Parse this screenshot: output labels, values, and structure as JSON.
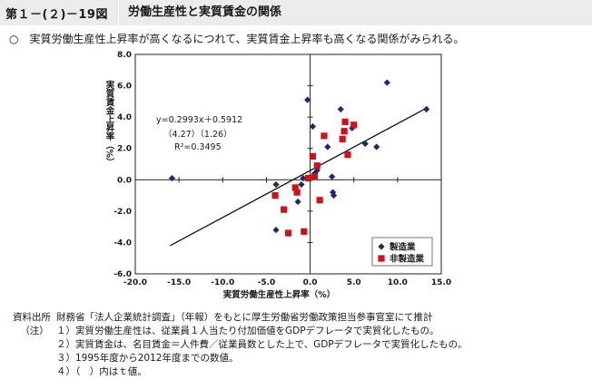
{
  "header": {
    "figure_number": "第１－(２)－19図",
    "title": "労働生産性と実質賃金の関係"
  },
  "summary": {
    "bullet": "○",
    "text": "実質労働生産性上昇率が高くなるにつれて、実質賃金上昇率も高くなる関係がみられる。"
  },
  "chart_data": {
    "type": "scatter",
    "xlabel": "実質労働生産性上昇率（%）",
    "ylabel": "実質賃金上昇率（%）",
    "xlim": [
      -20.0,
      15.0
    ],
    "ylim": [
      -6.0,
      8.0
    ],
    "x_ticks": [
      "-20.0",
      "-15.0",
      "-10.0",
      "-5.0",
      "0.0",
      "5.0",
      "10.0",
      "15.0"
    ],
    "y_ticks": [
      "8.0",
      "6.0",
      "4.0",
      "2.0",
      "0.0",
      "-2.0",
      "-4.0",
      "-6.0"
    ],
    "grid": false,
    "legend_position": "bottom-right",
    "annotation": {
      "equation": "y=0.2993x＋0.5912",
      "t_values": "（4.27）（1.26）",
      "r2": "R²=0.3495"
    },
    "regression": {
      "slope": 0.2993,
      "intercept": 0.5912,
      "x_range": [
        -16.0,
        13.5
      ]
    },
    "series": [
      {
        "name": "製造業",
        "marker": "diamond",
        "color": "#1f2a6b",
        "points": [
          [
            -15.8,
            0.1
          ],
          [
            -3.9,
            -0.3
          ],
          [
            -3.9,
            -3.2
          ],
          [
            -1.4,
            -1.4
          ],
          [
            -1.0,
            -0.3
          ],
          [
            -0.8,
            0.1
          ],
          [
            -0.3,
            5.1
          ],
          [
            0.3,
            3.4
          ],
          [
            0.5,
            0.4
          ],
          [
            0.8,
            0.6
          ],
          [
            2.0,
            2.1
          ],
          [
            2.5,
            0.2
          ],
          [
            2.6,
            -0.8
          ],
          [
            2.7,
            -1.0
          ],
          [
            3.5,
            4.5
          ],
          [
            4.8,
            3.3
          ],
          [
            6.3,
            2.3
          ],
          [
            7.6,
            2.1
          ],
          [
            8.8,
            6.2
          ],
          [
            13.3,
            4.5
          ]
        ]
      },
      {
        "name": "非製造業",
        "marker": "square",
        "color": "#d0101c",
        "points": [
          [
            -4.0,
            -1.0
          ],
          [
            -3.0,
            -1.9
          ],
          [
            -2.5,
            -3.4
          ],
          [
            -1.7,
            -0.5
          ],
          [
            -1.5,
            -0.8
          ],
          [
            -0.7,
            -3.3
          ],
          [
            -0.2,
            0.1
          ],
          [
            0.3,
            1.5
          ],
          [
            0.5,
            0.2
          ],
          [
            0.8,
            0.9
          ],
          [
            1.1,
            -1.3
          ],
          [
            1.6,
            2.8
          ],
          [
            3.7,
            2.6
          ],
          [
            3.9,
            3.1
          ],
          [
            4.0,
            3.7
          ],
          [
            4.3,
            1.6
          ],
          [
            5.0,
            3.5
          ]
        ]
      }
    ]
  },
  "notes": [
    {
      "label": "資料出所",
      "text": "財務省「法人企業統計調査」（年報）をもとに厚生労働省労働政策担当参事官室にて推計"
    },
    {
      "label": "（注）",
      "text": "１）実質労働生産性は、従業員１人当たり付加価値をGDPデフレータで実質化したもの。"
    },
    {
      "label": "",
      "text": "２）実質賃金は、名目賃金＝人件費／従業員数とした上で、GDPデフレータで実質化したもの。"
    },
    {
      "label": "",
      "text": "３）1995年度から2012年度までの数値。"
    },
    {
      "label": "",
      "text": "４）（　）内はｔ値。"
    }
  ]
}
